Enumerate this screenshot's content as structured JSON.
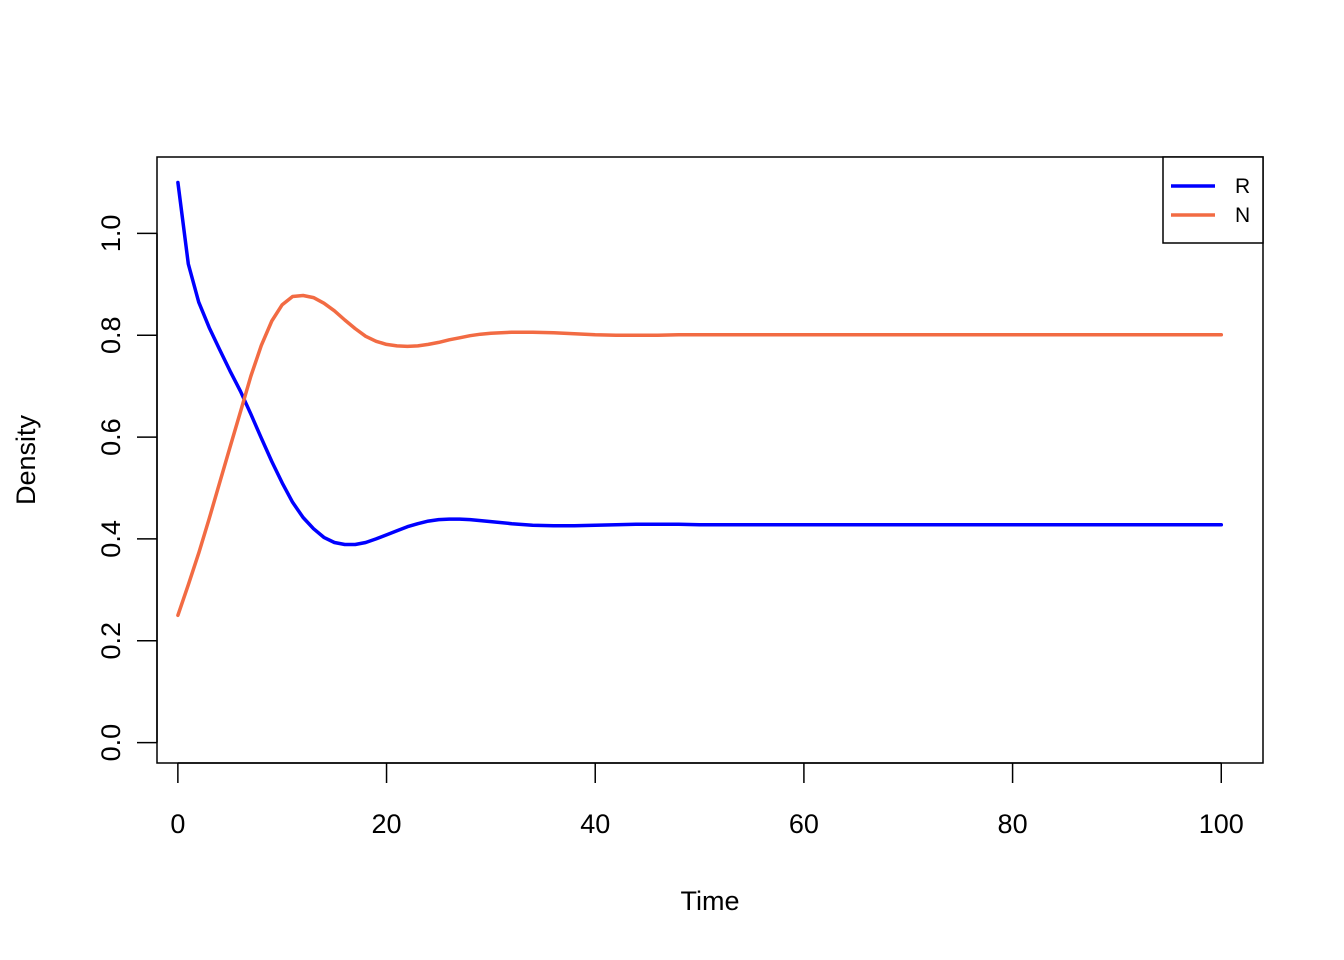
{
  "chart_data": {
    "type": "line",
    "title": "",
    "xlabel": "Time",
    "ylabel": "Density",
    "xlim": [
      -2,
      104
    ],
    "ylim": [
      -0.04,
      1.15
    ],
    "xticks": [
      0,
      20,
      40,
      60,
      80,
      100
    ],
    "yticks": [
      0.0,
      0.2,
      0.4,
      0.6,
      0.8,
      1.0
    ],
    "xtick_labels": [
      "0",
      "20",
      "40",
      "60",
      "80",
      "100"
    ],
    "ytick_labels": [
      "0.0",
      "0.2",
      "0.4",
      "0.6",
      "0.8",
      "1.0"
    ],
    "grid": false,
    "legend_position": "top-right",
    "x": [
      0,
      1,
      2,
      3,
      4,
      5,
      6,
      7,
      8,
      9,
      10,
      11,
      12,
      13,
      14,
      15,
      16,
      17,
      18,
      19,
      20,
      21,
      22,
      23,
      24,
      25,
      26,
      27,
      28,
      29,
      30,
      32,
      34,
      36,
      38,
      40,
      42,
      44,
      46,
      48,
      50,
      55,
      60,
      65,
      70,
      75,
      80,
      85,
      90,
      95,
      100
    ],
    "series": [
      {
        "name": "R",
        "color": "#0000ff",
        "values": [
          1.1,
          0.94,
          0.865,
          0.815,
          0.772,
          0.73,
          0.69,
          0.645,
          0.598,
          0.552,
          0.51,
          0.472,
          0.442,
          0.42,
          0.403,
          0.393,
          0.389,
          0.389,
          0.393,
          0.4,
          0.408,
          0.416,
          0.424,
          0.43,
          0.435,
          0.438,
          0.439,
          0.439,
          0.438,
          0.436,
          0.434,
          0.43,
          0.427,
          0.426,
          0.426,
          0.427,
          0.428,
          0.429,
          0.429,
          0.429,
          0.428,
          0.428,
          0.428,
          0.428,
          0.428,
          0.428,
          0.428,
          0.428,
          0.428,
          0.428,
          0.428
        ]
      },
      {
        "name": "N",
        "color": "#f26b43",
        "values": [
          0.25,
          0.31,
          0.372,
          0.44,
          0.51,
          0.58,
          0.65,
          0.72,
          0.78,
          0.828,
          0.86,
          0.876,
          0.878,
          0.874,
          0.863,
          0.848,
          0.83,
          0.813,
          0.798,
          0.788,
          0.782,
          0.779,
          0.778,
          0.779,
          0.782,
          0.786,
          0.791,
          0.795,
          0.799,
          0.802,
          0.804,
          0.806,
          0.806,
          0.805,
          0.803,
          0.801,
          0.8,
          0.8,
          0.8,
          0.801,
          0.801,
          0.801,
          0.801,
          0.801,
          0.801,
          0.801,
          0.801,
          0.801,
          0.801,
          0.801,
          0.801
        ]
      }
    ]
  }
}
